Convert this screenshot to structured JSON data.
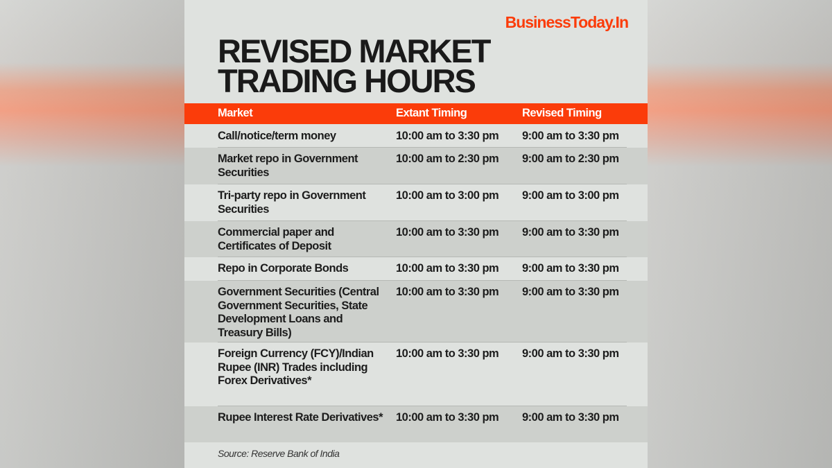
{
  "brand": "BusinessToday.In",
  "title_lines": [
    "REVISED MARKET",
    "TRADING HOURS"
  ],
  "colors": {
    "accent": "#fb3c0a",
    "panel": "#dfe2df",
    "row_alt": "#cdd0cc"
  },
  "table": {
    "headers": [
      "Market",
      "Extant Timing",
      "Revised Timing"
    ],
    "rows": [
      {
        "market": "Call/notice/term money",
        "extant": "10:00 am to 3:30 pm",
        "revised": "9:00 am to 3:30 pm"
      },
      {
        "market": "Market repo in Government Securities",
        "extant": "10:00 am to 2:30 pm",
        "revised": "9:00 am to 2:30 pm"
      },
      {
        "market": "Tri-party repo in Government Securities",
        "extant": "10:00 am to 3:00 pm",
        "revised": "9:00 am to 3:00 pm"
      },
      {
        "market": "Commercial paper and Certificates of Deposit",
        "extant": "10:00 am to 3:30 pm",
        "revised": "9:00 am to 3:30 pm"
      },
      {
        "market": "Repo in Corporate Bonds",
        "extant": "10:00 am to 3:30 pm",
        "revised": "9:00 am to 3:30 pm"
      },
      {
        "market": "Government Securities (Central Government Securities, State Development Loans and Treasury Bills)",
        "extant": "10:00 am to 3:30 pm",
        "revised": "9:00 am to 3:30 pm"
      },
      {
        "market": "Foreign Currency (FCY)/Indian Rupee (INR) Trades including Forex Derivatives*",
        "extant": "10:00 am to 3:30 pm",
        "revised": "9:00 am to 3:30 pm"
      },
      {
        "market": "Rupee Interest Rate Derivatives*",
        "extant": "10:00 am to 3:30 pm",
        "revised": "9:00 am to 3:30 pm"
      }
    ]
  },
  "source": "Source: Reserve Bank of India"
}
